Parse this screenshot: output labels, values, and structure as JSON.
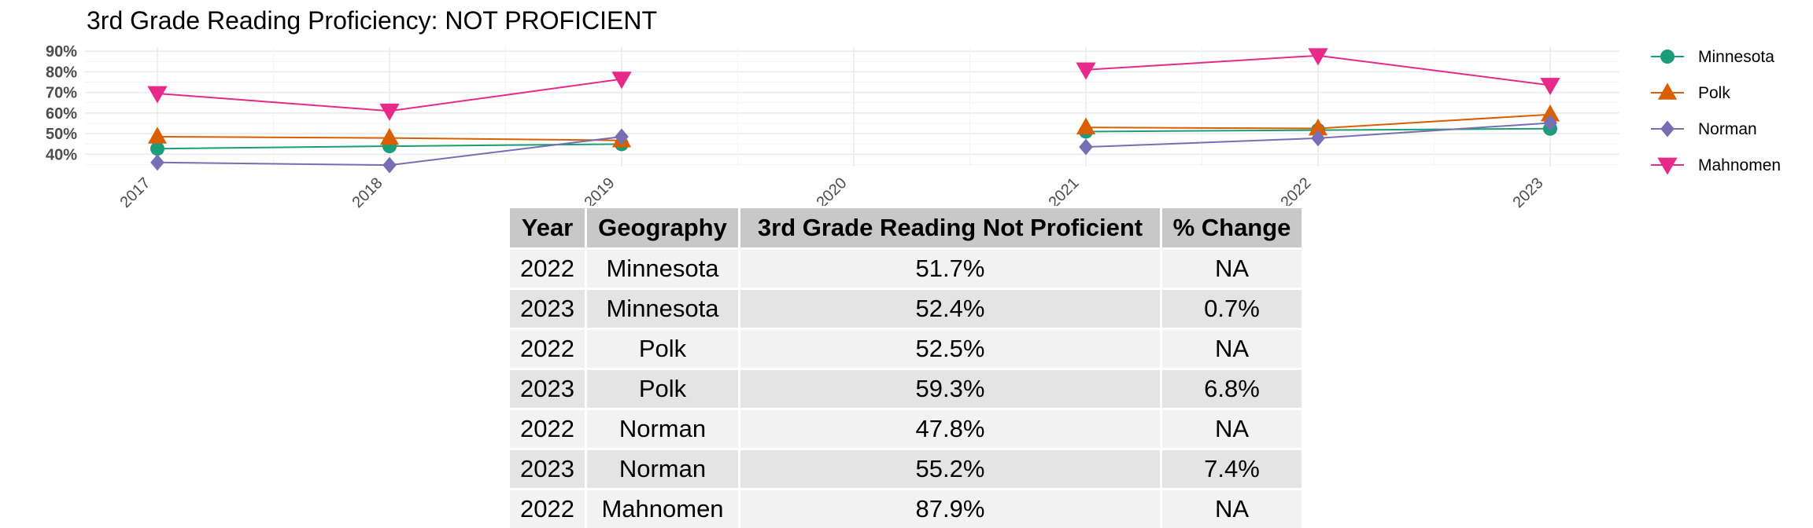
{
  "chart_data": {
    "type": "line",
    "title": "3rd Grade Reading Proficiency: NOT PROFICIENT",
    "xlabel": "",
    "ylabel": "",
    "x": [
      "2017",
      "2018",
      "2019",
      "2020",
      "2021",
      "2022",
      "2023"
    ],
    "y_ticks": [
      "40%",
      "50%",
      "60%",
      "70%",
      "80%",
      "90%"
    ],
    "ylim": [
      34,
      92
    ],
    "grid": true,
    "legend_position": "right",
    "series": [
      {
        "name": "Minnesota",
        "color": "#1b9e77",
        "marker": "circle",
        "values": [
          42.7,
          43.9,
          44.9,
          null,
          51.0,
          51.7,
          52.4
        ]
      },
      {
        "name": "Polk",
        "color": "#d95f02",
        "marker": "triangle-up",
        "values": [
          48.5,
          47.9,
          46.7,
          null,
          53.0,
          52.5,
          59.3
        ]
      },
      {
        "name": "Norman",
        "color": "#7570b3",
        "marker": "diamond",
        "values": [
          36.0,
          34.7,
          48.5,
          null,
          43.5,
          47.8,
          55.2
        ]
      },
      {
        "name": "Mahnomen",
        "color": "#e7298a",
        "marker": "triangle-down",
        "values": [
          69.5,
          61.0,
          76.5,
          null,
          81.0,
          87.9,
          73.5
        ]
      }
    ]
  },
  "table": {
    "headers": [
      "Year",
      "Geography",
      "3rd Grade Reading Not Proficient",
      "% Change"
    ],
    "rows": [
      [
        "2022",
        "Minnesota",
        "51.7%",
        "NA"
      ],
      [
        "2023",
        "Minnesota",
        "52.4%",
        "0.7%"
      ],
      [
        "2022",
        "Polk",
        "52.5%",
        "NA"
      ],
      [
        "2023",
        "Polk",
        "59.3%",
        "6.8%"
      ],
      [
        "2022",
        "Norman",
        "47.8%",
        "NA"
      ],
      [
        "2023",
        "Norman",
        "55.2%",
        "7.4%"
      ],
      [
        "2022",
        "Mahnomen",
        "87.9%",
        "NA"
      ]
    ]
  }
}
